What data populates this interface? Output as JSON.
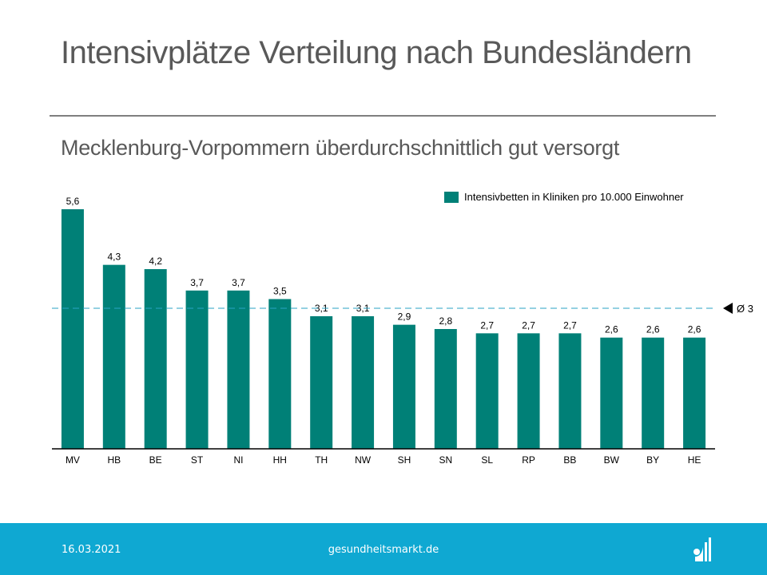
{
  "header": {
    "title": "Intensivplätze Verteilung nach Bundesländern",
    "subtitle": "Mecklenburg-Vorpommern überdurchschnittlich gut versorgt"
  },
  "chart_data": {
    "type": "bar",
    "title": "Intensivplätze Verteilung nach Bundesländern",
    "subtitle": "Mecklenburg-Vorpommern überdurchschnittlich gut versorgt",
    "xlabel": "",
    "ylabel": "",
    "categories": [
      "MV",
      "HB",
      "BE",
      "ST",
      "NI",
      "HH",
      "TH",
      "NW",
      "SH",
      "SN",
      "SL",
      "RP",
      "BB",
      "BW",
      "BY",
      "HE"
    ],
    "series": [
      {
        "name": "Intensivbetten in Kliniken pro 10.000 Einwohner",
        "color": "#008077",
        "values": [
          5.6,
          4.3,
          4.2,
          3.7,
          3.7,
          3.5,
          3.1,
          3.1,
          2.9,
          2.8,
          2.7,
          2.7,
          2.7,
          2.6,
          2.6,
          2.6
        ],
        "labels": [
          "5,6",
          "4,3",
          "4,2",
          "3,7",
          "3,7",
          "3,5",
          "3,1",
          "3,1",
          "2,9",
          "2,8",
          "2,7",
          "2,7",
          "2,7",
          "2,6",
          "2,6",
          "2,6"
        ]
      }
    ],
    "reference_line": {
      "value": 3,
      "label": "Ø 3",
      "color": "#2aa3c4",
      "style": "dashed"
    },
    "ylim": [
      0,
      5.6
    ],
    "grid": false,
    "legend": "top-right",
    "legend_label": "Intensivbetten in Kliniken pro 10.000 Einwohner"
  },
  "footer": {
    "date": "16.03.2021",
    "site": "gesundheitsmarkt.de",
    "logo_icon": "gesundheitsmarkt-logo-icon"
  }
}
